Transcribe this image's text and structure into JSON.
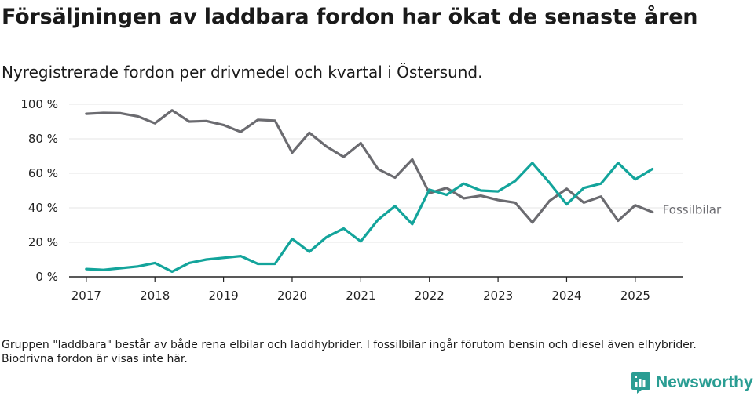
{
  "header": {
    "title": "Försäljningen av laddbara fordon har ökat de senaste åren",
    "subtitle": "Nyregistrerade fordon per drivmedel och kvartal i Östersund."
  },
  "footnote": "Gruppen \"laddbara\" består av både rena elbilar och laddhybrider. I fossilbilar ingår förutom bensin och diesel även elhybrider. Biodrivna fordon är visas inte här.",
  "brand": {
    "name": "Newsworthy",
    "icon": "newsworthy-logo-icon",
    "color": "#2a9d93"
  },
  "colors": {
    "fossil": "#6b6b70",
    "laddbara": "#13a49b",
    "grid": "#e4e4e4",
    "axis": "#222222"
  },
  "chart_data": {
    "type": "line",
    "title": "Försäljningen av laddbara fordon har ökat de senaste åren",
    "subtitle": "Nyregistrerade fordon per drivmedel och kvartal i Östersund.",
    "xlabel": "",
    "ylabel": "",
    "x_start": 2017,
    "x_step": 0.25,
    "xlim": [
      2016.75,
      2025.7
    ],
    "ylim": [
      0,
      100
    ],
    "x_ticks": [
      2017,
      2018,
      2019,
      2020,
      2021,
      2022,
      2023,
      2024,
      2025
    ],
    "x_tick_labels": [
      "2017",
      "2018",
      "2019",
      "2020",
      "2021",
      "2022",
      "2023",
      "2024",
      "2025"
    ],
    "y_ticks": [
      0,
      20,
      40,
      60,
      80,
      100
    ],
    "y_tick_labels": [
      "0 %",
      "20 %",
      "40 %",
      "60 %",
      "80 %",
      "100 %"
    ],
    "grid": true,
    "series": [
      {
        "name": "Fossilbilar",
        "label": "Fossilbilar",
        "color": "#6b6b70",
        "values": [
          94.5,
          95,
          94.8,
          93,
          89,
          96.5,
          90,
          90.3,
          88,
          84,
          91,
          90.5,
          72,
          83.5,
          75.5,
          69.5,
          77.5,
          62.5,
          57.5,
          68,
          48.5,
          51.5,
          45.5,
          47,
          44.5,
          43,
          31.5,
          44,
          51,
          43,
          46.5,
          32.5,
          41.5,
          37.5
        ]
      },
      {
        "name": "Laddbara",
        "label": "",
        "color": "#13a49b",
        "values": [
          4.5,
          4,
          5,
          6,
          8,
          3,
          8,
          10,
          11,
          12,
          7.5,
          7.5,
          22,
          14.5,
          23,
          28,
          20.5,
          33,
          41,
          30.5,
          50.5,
          47.5,
          54,
          50,
          49.5,
          55.5,
          66,
          54.5,
          42,
          51.5,
          54,
          66,
          56.5,
          62.5
        ]
      }
    ]
  }
}
